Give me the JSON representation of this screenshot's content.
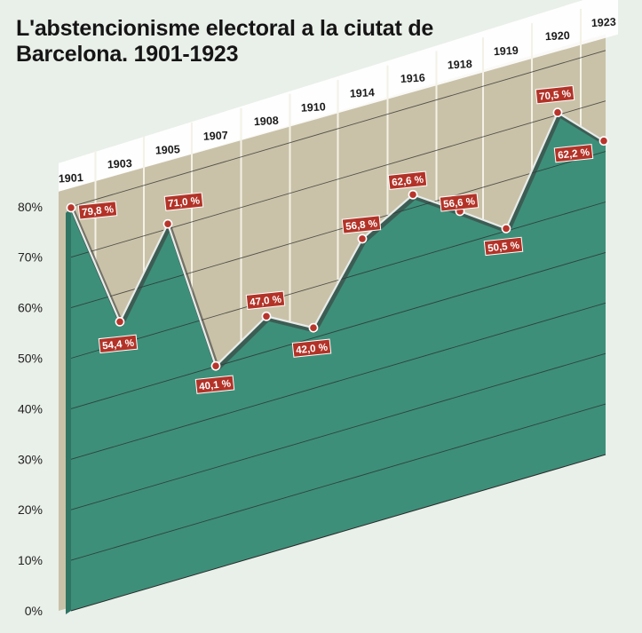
{
  "title": "L'abstencionisme electoral a la ciutat de Barcelona. 1901-1923",
  "chart_data": {
    "type": "area",
    "title": "L'abstencionisme electoral a la ciutat de Barcelona. 1901-1923",
    "xlabel": "",
    "ylabel": "",
    "categories": [
      "1901",
      "1903",
      "1905",
      "1907",
      "1908",
      "1910",
      "1914",
      "1916",
      "1918",
      "1919",
      "1920",
      "1923"
    ],
    "values": [
      79.8,
      54.4,
      71.0,
      40.1,
      47.0,
      42.0,
      56.8,
      62.6,
      56.6,
      50.5,
      70.5,
      62.2
    ],
    "data_labels": [
      "79,8 %",
      "54,4 %",
      "71,0 %",
      "40,1 %",
      "47,0 %",
      "42,0 %",
      "56,8 %",
      "62,6 %",
      "56,6 %",
      "50,5 %",
      "70,5 %",
      "62,2 %"
    ],
    "yticks": [
      "0%",
      "10%",
      "20%",
      "30%",
      "40%",
      "50%",
      "60%",
      "70%",
      "80%"
    ],
    "ylim": [
      0,
      80
    ],
    "grid": true,
    "style": "3d-perspective",
    "colors": {
      "area": "#3d8f79",
      "area_side": "#2f7564",
      "back_wall": "#c9c2a8",
      "line": "#5a5a5a",
      "marker": "#b8352c",
      "label_bg": "#b33227"
    }
  }
}
